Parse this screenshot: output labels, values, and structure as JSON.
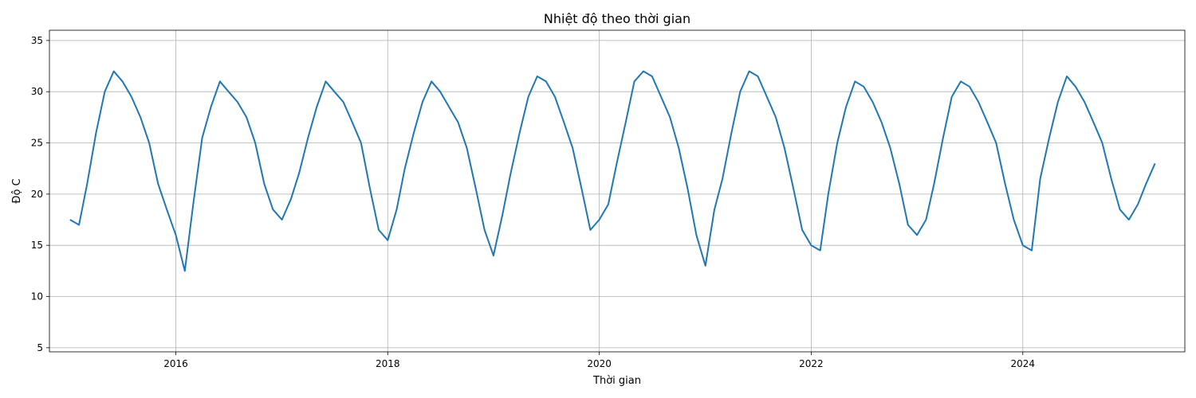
{
  "chart_data": {
    "type": "line",
    "title": "Nhiệt độ theo thời gian",
    "xlabel": "Thời gian",
    "ylabel": "Độ C",
    "xlim": [
      "2014-10-22",
      "2025-07-13"
    ],
    "ylim": [
      4.6,
      36.0
    ],
    "grid": true,
    "x_ticks": [
      "2016-01-01",
      "2018-01-01",
      "2020-01-01",
      "2022-01-01",
      "2024-01-01"
    ],
    "x_tick_labels": [
      "2016",
      "2018",
      "2020",
      "2022",
      "2024"
    ],
    "y_ticks": [
      5,
      10,
      15,
      20,
      25,
      30,
      35
    ],
    "series": [
      {
        "color": "#1f77b4",
        "x": [
          "2015-01-01",
          "2015-02-01",
          "2015-03-01",
          "2015-04-01",
          "2015-05-01",
          "2015-06-01",
          "2015-07-01",
          "2015-08-01",
          "2015-09-01",
          "2015-10-01",
          "2015-11-01",
          "2015-12-01",
          "2016-01-01",
          "2016-02-01",
          "2016-03-01",
          "2016-04-01",
          "2016-05-01",
          "2016-06-01",
          "2016-07-01",
          "2016-08-01",
          "2016-09-01",
          "2016-10-01",
          "2016-11-01",
          "2016-12-01",
          "2017-01-01",
          "2017-02-01",
          "2017-03-01",
          "2017-04-01",
          "2017-05-01",
          "2017-06-01",
          "2017-07-01",
          "2017-08-01",
          "2017-09-01",
          "2017-10-01",
          "2017-11-01",
          "2017-12-01",
          "2018-01-01",
          "2018-02-01",
          "2018-03-01",
          "2018-04-01",
          "2018-05-01",
          "2018-06-01",
          "2018-07-01",
          "2018-08-01",
          "2018-09-01",
          "2018-10-01",
          "2018-11-01",
          "2018-12-01",
          "2019-01-01",
          "2019-02-01",
          "2019-03-01",
          "2019-04-01",
          "2019-05-01",
          "2019-06-01",
          "2019-07-01",
          "2019-08-01",
          "2019-09-01",
          "2019-10-01",
          "2019-11-01",
          "2019-12-01",
          "2020-01-01",
          "2020-02-01",
          "2020-03-01",
          "2020-04-01",
          "2020-05-01",
          "2020-06-01",
          "2020-07-01",
          "2020-08-01",
          "2020-09-01",
          "2020-10-01",
          "2020-11-01",
          "2020-12-01",
          "2021-01-01",
          "2021-02-01",
          "2021-03-01",
          "2021-04-01",
          "2021-05-01",
          "2021-06-01",
          "2021-07-01",
          "2021-08-01",
          "2021-09-01",
          "2021-10-01",
          "2021-11-01",
          "2021-12-01",
          "2022-01-01",
          "2022-02-01",
          "2022-03-01",
          "2022-04-01",
          "2022-05-01",
          "2022-06-01",
          "2022-07-01",
          "2022-08-01",
          "2022-09-01",
          "2022-10-01",
          "2022-11-01",
          "2022-12-01",
          "2023-01-01",
          "2023-02-01",
          "2023-03-01",
          "2023-04-01",
          "2023-05-01",
          "2023-06-01",
          "2023-07-01",
          "2023-08-01",
          "2023-09-01",
          "2023-10-01",
          "2023-11-01",
          "2023-12-01",
          "2024-01-01",
          "2024-02-01",
          "2024-03-01",
          "2024-04-01",
          "2024-05-01",
          "2024-06-01",
          "2024-07-01",
          "2024-08-01",
          "2024-09-01",
          "2024-10-01",
          "2024-11-01",
          "2024-12-01",
          "2025-01-01",
          "2025-02-01",
          "2025-03-01",
          "2025-04-01"
        ],
        "y": [
          17.5,
          17.0,
          21.0,
          26.0,
          30.0,
          32.0,
          31.0,
          29.5,
          27.5,
          25.0,
          21.0,
          18.5,
          16.0,
          12.5,
          19.0,
          25.5,
          28.5,
          31.0,
          30.0,
          29.0,
          27.5,
          25.0,
          21.0,
          18.5,
          17.5,
          19.5,
          22.0,
          25.5,
          28.5,
          31.0,
          30.0,
          29.0,
          27.0,
          25.0,
          20.5,
          16.5,
          15.5,
          18.5,
          22.5,
          26.0,
          29.0,
          31.0,
          30.0,
          28.5,
          27.0,
          24.5,
          20.5,
          16.5,
          14.0,
          18.0,
          22.0,
          26.0,
          29.5,
          31.5,
          31.0,
          29.5,
          27.0,
          24.5,
          20.5,
          16.5,
          17.5,
          19.0,
          23.0,
          27.0,
          31.0,
          32.0,
          31.5,
          29.5,
          27.5,
          24.5,
          20.5,
          16.0,
          13.0,
          18.5,
          21.5,
          26.0,
          30.0,
          32.0,
          31.5,
          29.5,
          27.5,
          24.5,
          20.5,
          16.5,
          15.0,
          14.5,
          20.0,
          25.0,
          28.5,
          31.0,
          30.5,
          29.0,
          27.0,
          24.5,
          21.0,
          17.0,
          16.0,
          17.5,
          21.0,
          25.5,
          29.5,
          31.0,
          30.5,
          29.0,
          27.0,
          25.0,
          21.0,
          17.5,
          15.0,
          14.5,
          21.5,
          25.5,
          29.0,
          31.5,
          30.5,
          29.0,
          27.0,
          25.0,
          21.5,
          18.5,
          17.5,
          19.0,
          21.0,
          23.0
        ]
      }
    ]
  }
}
